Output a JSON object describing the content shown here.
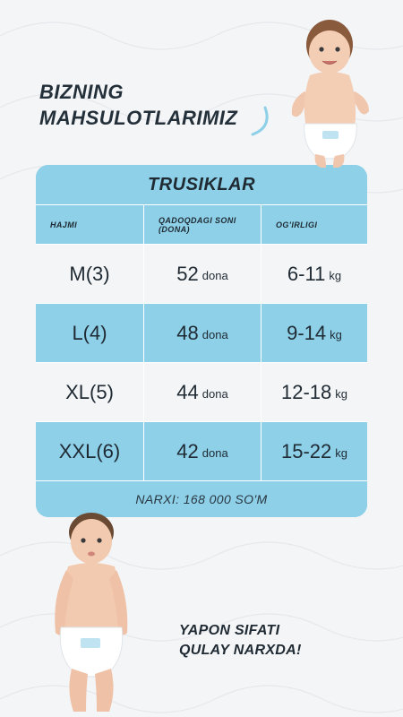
{
  "headline": {
    "line1": "BIZNING",
    "line2": "MAHSULOTLARIMIZ"
  },
  "table": {
    "title": "TRUSIKLAR",
    "headers": {
      "size": "HAJMI",
      "count": "QADOQDAGI SONI (DONA)",
      "weight": "OG'IRLIGI"
    },
    "rows": [
      {
        "size": "M(3)",
        "count": "52",
        "count_unit": "dona",
        "weight": "6-11",
        "weight_unit": "kg"
      },
      {
        "size": "L(4)",
        "count": "48",
        "count_unit": "dona",
        "weight": "9-14",
        "weight_unit": "kg"
      },
      {
        "size": "XL(5)",
        "count": "44",
        "count_unit": "dona",
        "weight": "12-18",
        "weight_unit": "kg"
      },
      {
        "size": "XXL(6)",
        "count": "42",
        "count_unit": "dona",
        "weight": "15-22",
        "weight_unit": "kg"
      }
    ],
    "price": "NARXI: 168 000 SO'M"
  },
  "slogan": {
    "line1": "YAPON SIFATI",
    "line2": "QULAY NARXDA!"
  },
  "colors": {
    "accent": "#8dd0e8",
    "light": "#f4f5f7",
    "text": "#1f2a33"
  }
}
